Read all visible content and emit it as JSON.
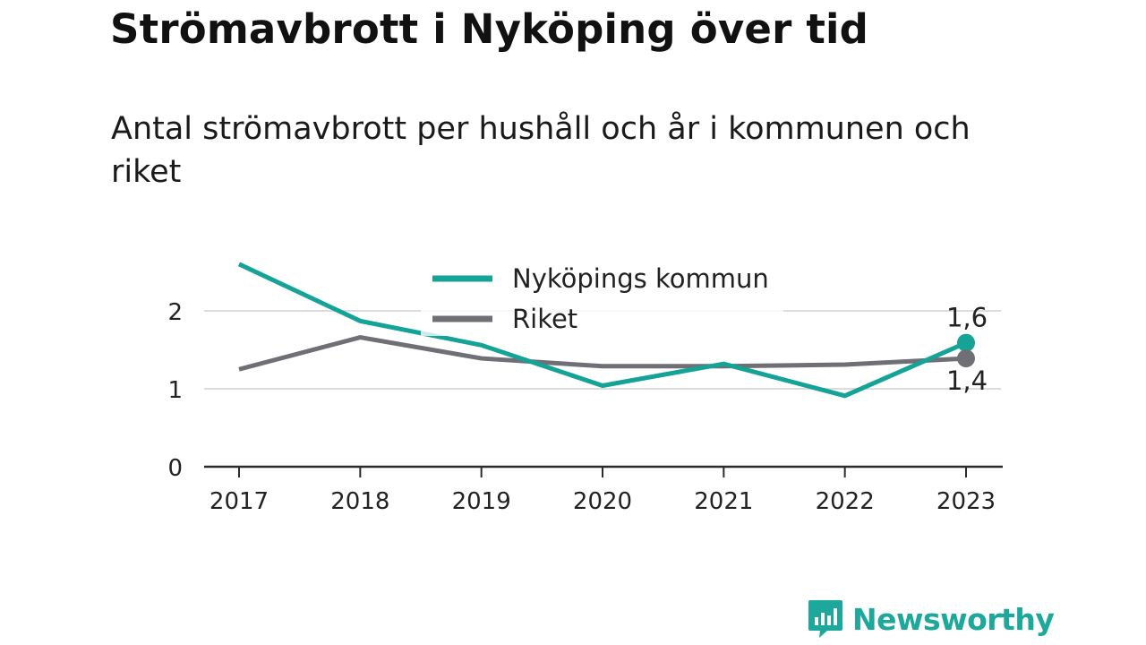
{
  "header": {
    "title": "Strömavbrott i Nyköping över tid",
    "subtitle": "Antal strömavbrott per hushåll och år i kommunen och riket"
  },
  "chart_data": {
    "type": "line",
    "title": "Strömavbrott i Nyköping över tid",
    "subtitle": "Antal strömavbrott per hushåll och år i kommunen och riket",
    "xlabel": "",
    "ylabel": "",
    "x": [
      "2017",
      "2018",
      "2019",
      "2020",
      "2021",
      "2022",
      "2023"
    ],
    "ylim": [
      0,
      2.6
    ],
    "yticks": [
      0,
      1,
      2
    ],
    "grid": true,
    "legend_position": "top-center",
    "series": [
      {
        "name": "Nyköpings kommun",
        "color": "#14a396",
        "values": [
          2.6,
          1.87,
          1.56,
          1.04,
          1.32,
          0.91,
          1.59
        ],
        "end_label": "1,6"
      },
      {
        "name": "Riket",
        "color": "#6f6f75",
        "values": [
          1.25,
          1.66,
          1.39,
          1.29,
          1.29,
          1.31,
          1.39
        ],
        "end_label": "1,4"
      }
    ]
  },
  "brand": {
    "name": "Newsworthy",
    "color": "#1ea89b",
    "icon": "newsworthy-logo-icon"
  }
}
